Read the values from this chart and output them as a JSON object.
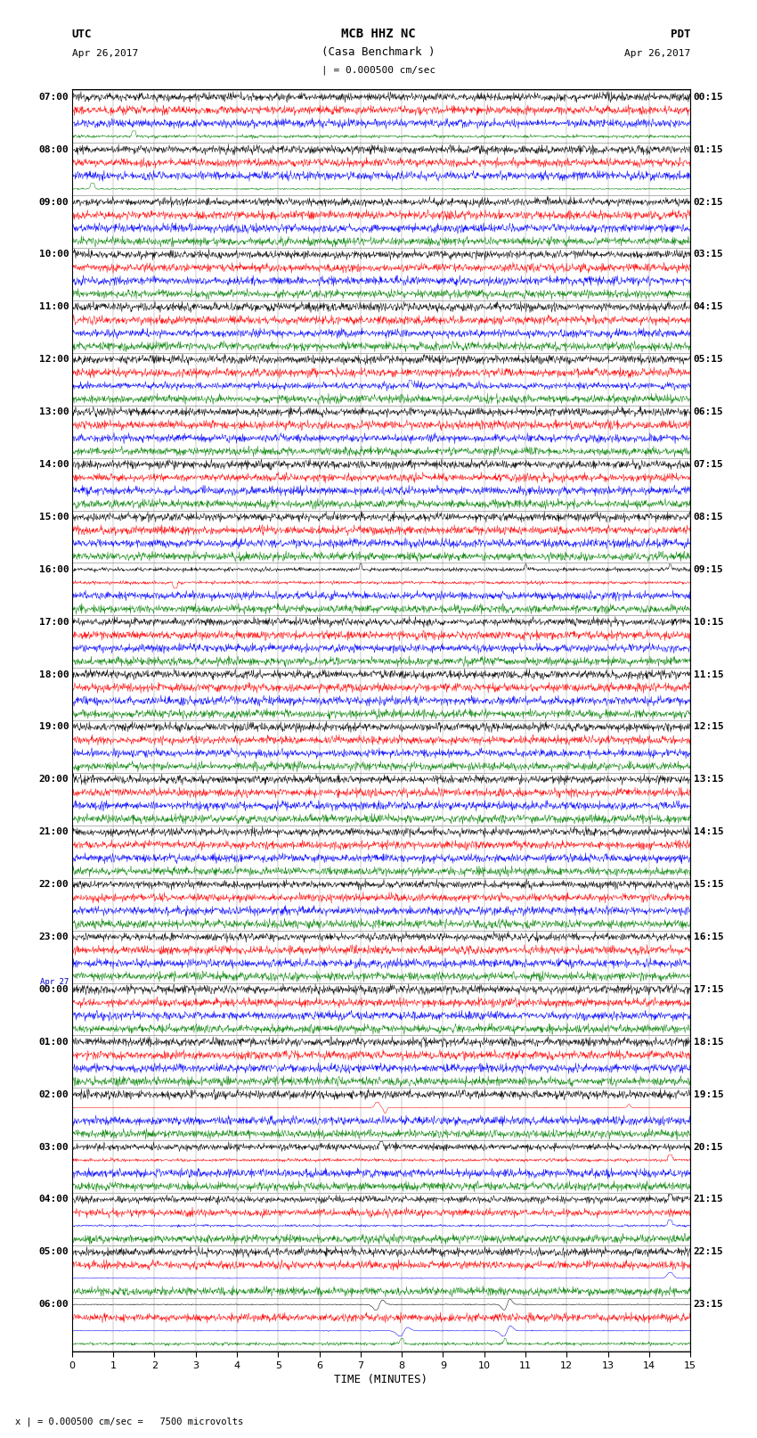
{
  "title_line1": "MCB HHZ NC",
  "title_line2": "(Casa Benchmark )",
  "title_scale": "| = 0.000500 cm/sec",
  "left_label_line1": "UTC",
  "left_label_line2": "Apr 26,2017",
  "right_label_line1": "PDT",
  "right_label_line2": "Apr 26,2017",
  "xlabel": "TIME (MINUTES)",
  "footnote": "x | = 0.000500 cm/sec =   7500 microvolts",
  "utc_times": [
    "07:00",
    "08:00",
    "09:00",
    "10:00",
    "11:00",
    "12:00",
    "13:00",
    "14:00",
    "15:00",
    "16:00",
    "17:00",
    "18:00",
    "19:00",
    "20:00",
    "21:00",
    "22:00",
    "23:00",
    "Apr 27",
    "00:00",
    "01:00",
    "02:00",
    "03:00",
    "04:00",
    "05:00",
    "06:00"
  ],
  "utc_is_date": [
    false,
    false,
    false,
    false,
    false,
    false,
    false,
    false,
    false,
    false,
    false,
    false,
    false,
    false,
    false,
    false,
    false,
    true,
    false,
    false,
    false,
    false,
    false,
    false,
    false
  ],
  "pdt_times": [
    "00:15",
    "01:15",
    "02:15",
    "03:15",
    "04:15",
    "05:15",
    "06:15",
    "07:15",
    "08:15",
    "09:15",
    "10:15",
    "11:15",
    "12:15",
    "13:15",
    "14:15",
    "15:15",
    "16:15",
    "17:15",
    "18:15",
    "19:15",
    "20:15",
    "21:15",
    "22:15",
    "23:15"
  ],
  "n_hours": 24,
  "traces_per_hour": 4,
  "colors": [
    "black",
    "red",
    "blue",
    "green"
  ],
  "bg_color": "white",
  "figsize": [
    8.5,
    16.13
  ],
  "dpi": 100,
  "xmin": 0,
  "xmax": 15,
  "xticks": [
    0,
    1,
    2,
    3,
    4,
    5,
    6,
    7,
    8,
    9,
    10,
    11,
    12,
    13,
    14,
    15
  ],
  "grid_color": "#888888",
  "grid_linewidth": 0.3,
  "trace_linewidth": 0.35,
  "noise_base": 0.06,
  "noise_late": 0.18,
  "noise_transition": 16
}
